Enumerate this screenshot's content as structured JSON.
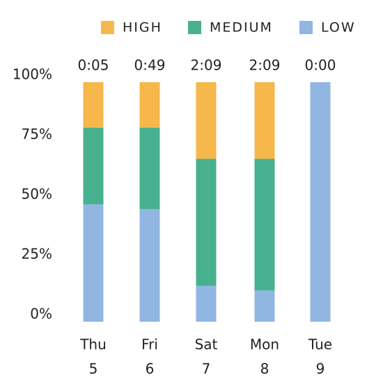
{
  "chart_data": {
    "type": "stacked_bar",
    "categories": [
      "Thu",
      "Fri",
      "Sat",
      "Mon",
      "Tue"
    ],
    "dates": [
      "5",
      "6",
      "7",
      "8",
      "9"
    ],
    "totals": [
      "0:05",
      "0:49",
      "2:09",
      "2:09",
      "0:00"
    ],
    "series": [
      {
        "name": "HIGH",
        "color": "#f6b74b",
        "values": [
          19,
          19,
          32,
          32,
          0
        ]
      },
      {
        "name": "MEDIUM",
        "color": "#47b08e",
        "values": [
          32,
          34,
          53,
          55,
          0
        ]
      },
      {
        "name": "LOW",
        "color": "#92b6e2",
        "values": [
          49,
          47,
          15,
          13,
          100
        ]
      }
    ],
    "ylim": [
      0,
      100
    ],
    "yticks": [
      {
        "value": 0,
        "label": "0%"
      },
      {
        "value": 25,
        "label": "25%"
      },
      {
        "value": 50,
        "label": "50%"
      },
      {
        "value": 75,
        "label": "75%"
      },
      {
        "value": 100,
        "label": "100%"
      }
    ],
    "legend": "top-right"
  }
}
